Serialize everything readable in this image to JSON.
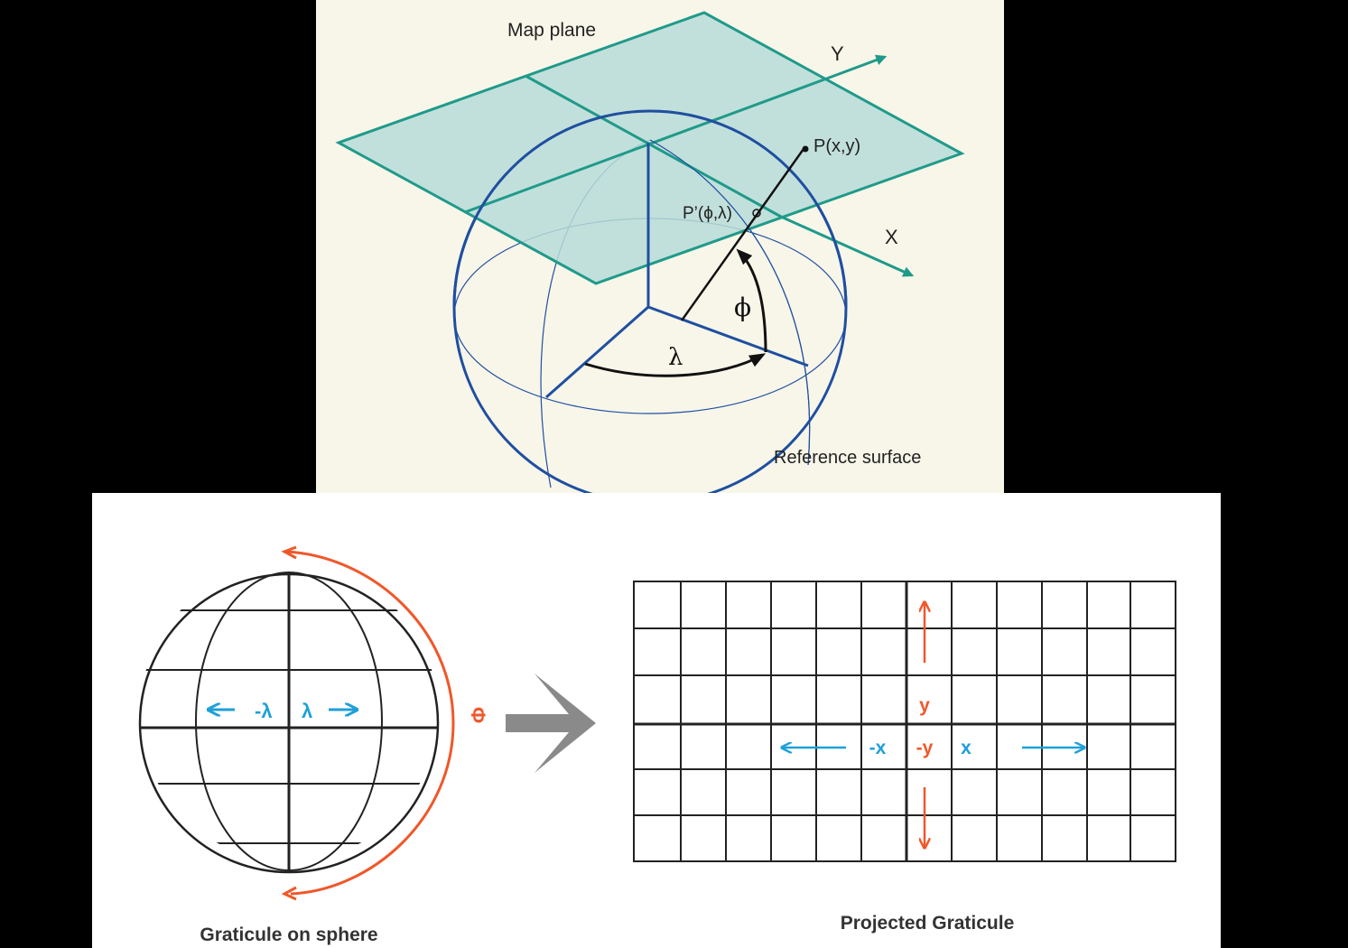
{
  "top_diagram": {
    "map_plane_label": "Map plane",
    "y_axis_label": "Y",
    "x_axis_label": "X",
    "point_p_label": "P(x,y)",
    "point_p_prime_label": "P’(ϕ,λ)",
    "phi_label": "ϕ",
    "lambda_label": "λ",
    "reference_surface_label": "Reference surface",
    "colors": {
      "plane_fill": "#b9dcd8",
      "plane_stroke": "#1f9a8a",
      "sphere_stroke": "#1f4fa0",
      "background": "#f8f6e9"
    }
  },
  "bottom_diagram": {
    "sphere_caption": "Graticule on sphere",
    "grid_caption": "Projected Graticule",
    "sphere_neg_lambda": "-λ",
    "sphere_lambda": "λ",
    "sphere_phi": "Φ",
    "grid_y": "y",
    "grid_neg_y": "-y",
    "grid_neg_x": "-x",
    "grid_x": "x",
    "colors": {
      "blue": "#1ea0d8",
      "orange": "#f0572a",
      "arrow_grey": "#8a8a8a"
    }
  }
}
